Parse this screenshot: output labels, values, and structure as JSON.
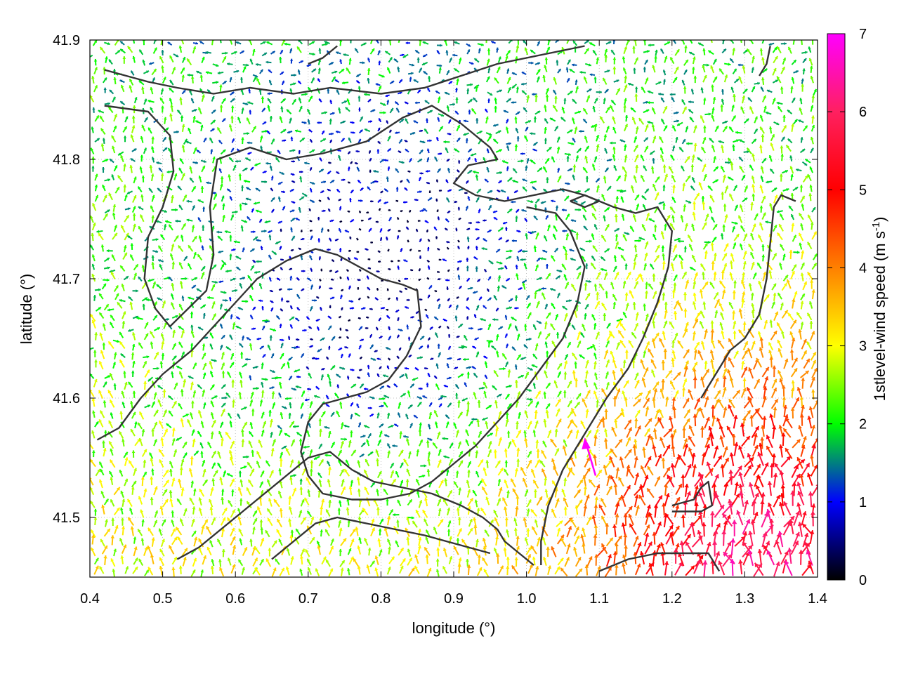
{
  "chart_data": {
    "type": "vector-field",
    "xlabel": "longitude (°)",
    "ylabel": "latitude (°)",
    "colorbar_label": "1stlevel-wind speed (m s",
    "colorbar_label_sup": "-1",
    "colorbar_label_close": ")",
    "xlim": [
      0.4,
      1.4
    ],
    "ylim": [
      41.45,
      41.9
    ],
    "xticks": [
      0.4,
      0.5,
      0.6,
      0.7,
      0.8,
      0.9,
      1.0,
      1.1,
      1.2,
      1.3,
      1.4
    ],
    "xtick_labels": [
      "0.4",
      "0.5",
      "0.6",
      "0.7",
      "0.8",
      "0.9",
      "1.0",
      "1.1",
      "1.2",
      "1.3",
      "1.4"
    ],
    "yticks": [
      41.5,
      41.6,
      41.7,
      41.8,
      41.9
    ],
    "ytick_labels": [
      "41.5",
      "41.6",
      "41.7",
      "41.8",
      "41.9"
    ],
    "crange": [
      0,
      7
    ],
    "cticks": [
      0,
      1,
      2,
      3,
      4,
      5,
      6,
      7
    ],
    "ctick_labels": [
      "0",
      "1",
      "2",
      "3",
      "4",
      "5",
      "6",
      "7"
    ],
    "colormap": [
      "#000000",
      "#0000ff",
      "#00ff00",
      "#ffff00",
      "#ff8000",
      "#ff0000",
      "#ff00ff"
    ],
    "contour_color": "#333333",
    "grid": "dotted",
    "wind_field_description": "dense arrows; weak winds (0-2 m/s, blue/green) over interior basin 0.6-1.0 lon, 41.55-41.85 lat; stronger southeasterly flow (3-6 m/s, yellow to red) toward southeast corner 1.0-1.4 lon, 41.45-41.65 lat; a single ~7 m/s vector near 1.08, 41.56",
    "contours": [
      [
        [
          0.42,
          41.875
        ],
        [
          0.48,
          41.865
        ],
        [
          0.52,
          41.86
        ],
        [
          0.57,
          41.855
        ],
        [
          0.62,
          41.86
        ],
        [
          0.68,
          41.855
        ],
        [
          0.73,
          41.86
        ],
        [
          0.8,
          41.855
        ],
        [
          0.86,
          41.86
        ],
        [
          0.91,
          41.87
        ],
        [
          0.96,
          41.88
        ],
        [
          1.0,
          41.885
        ],
        [
          1.04,
          41.89
        ],
        [
          1.08,
          41.895
        ]
      ],
      [
        [
          0.42,
          41.845
        ],
        [
          0.48,
          41.84
        ],
        [
          0.51,
          41.82
        ],
        [
          0.515,
          41.79
        ],
        [
          0.5,
          41.76
        ],
        [
          0.48,
          41.735
        ],
        [
          0.475,
          41.7
        ],
        [
          0.49,
          41.675
        ],
        [
          0.51,
          41.66
        ],
        [
          0.535,
          41.675
        ],
        [
          0.56,
          41.69
        ],
        [
          0.57,
          41.72
        ],
        [
          0.565,
          41.76
        ],
        [
          0.575,
          41.8
        ],
        [
          0.62,
          41.81
        ],
        [
          0.67,
          41.8
        ],
        [
          0.72,
          41.805
        ],
        [
          0.78,
          41.815
        ],
        [
          0.83,
          41.835
        ],
        [
          0.87,
          41.845
        ],
        [
          0.91,
          41.83
        ],
        [
          0.95,
          41.81
        ],
        [
          0.96,
          41.8
        ],
        [
          0.92,
          41.795
        ],
        [
          0.9,
          41.78
        ],
        [
          0.93,
          41.77
        ],
        [
          0.97,
          41.765
        ],
        [
          1.01,
          41.77
        ],
        [
          1.05,
          41.775
        ],
        [
          1.08,
          41.77
        ],
        [
          1.12,
          41.76
        ],
        [
          1.15,
          41.755
        ],
        [
          1.18,
          41.76
        ],
        [
          1.2,
          41.74
        ],
        [
          1.195,
          41.71
        ],
        [
          1.18,
          41.68
        ],
        [
          1.16,
          41.65
        ],
        [
          1.14,
          41.625
        ],
        [
          1.11,
          41.6
        ],
        [
          1.08,
          41.57
        ],
        [
          1.05,
          41.54
        ],
        [
          1.03,
          41.51
        ],
        [
          1.02,
          41.48
        ],
        [
          1.02,
          41.46
        ]
      ],
      [
        [
          0.41,
          41.565
        ],
        [
          0.44,
          41.575
        ],
        [
          0.47,
          41.6
        ],
        [
          0.5,
          41.62
        ],
        [
          0.54,
          41.64
        ],
        [
          0.57,
          41.66
        ],
        [
          0.6,
          41.68
        ],
        [
          0.63,
          41.7
        ],
        [
          0.67,
          41.715
        ],
        [
          0.71,
          41.725
        ],
        [
          0.74,
          41.72
        ],
        [
          0.77,
          41.71
        ],
        [
          0.8,
          41.7
        ],
        [
          0.83,
          41.695
        ],
        [
          0.85,
          41.69
        ],
        [
          0.855,
          41.66
        ],
        [
          0.835,
          41.635
        ],
        [
          0.81,
          41.615
        ],
        [
          0.78,
          41.605
        ],
        [
          0.75,
          41.6
        ],
        [
          0.72,
          41.595
        ],
        [
          0.7,
          41.58
        ],
        [
          0.69,
          41.555
        ],
        [
          0.7,
          41.535
        ],
        [
          0.72,
          41.52
        ],
        [
          0.76,
          41.515
        ],
        [
          0.8,
          41.515
        ],
        [
          0.84,
          41.52
        ],
        [
          0.87,
          41.53
        ],
        [
          0.9,
          41.545
        ],
        [
          0.93,
          41.56
        ],
        [
          0.96,
          41.58
        ],
        [
          0.99,
          41.6
        ],
        [
          1.02,
          41.625
        ],
        [
          1.05,
          41.65
        ],
        [
          1.07,
          41.68
        ],
        [
          1.08,
          41.71
        ],
        [
          1.06,
          41.74
        ],
        [
          1.04,
          41.755
        ],
        [
          1.0,
          41.76
        ]
      ],
      [
        [
          0.52,
          41.465
        ],
        [
          0.55,
          41.475
        ],
        [
          0.58,
          41.49
        ],
        [
          0.61,
          41.505
        ],
        [
          0.64,
          41.52
        ],
        [
          0.67,
          41.535
        ],
        [
          0.7,
          41.55
        ],
        [
          0.73,
          41.555
        ],
        [
          0.76,
          41.54
        ],
        [
          0.79,
          41.53
        ],
        [
          0.83,
          41.525
        ],
        [
          0.87,
          41.52
        ],
        [
          0.91,
          41.51
        ],
        [
          0.94,
          41.5
        ],
        [
          0.96,
          41.49
        ],
        [
          0.97,
          41.48
        ],
        [
          0.99,
          41.47
        ],
        [
          1.01,
          41.46
        ]
      ],
      [
        [
          0.65,
          41.465
        ],
        [
          0.68,
          41.48
        ],
        [
          0.71,
          41.495
        ],
        [
          0.74,
          41.5
        ],
        [
          0.78,
          41.495
        ],
        [
          0.82,
          41.49
        ],
        [
          0.86,
          41.485
        ],
        [
          0.89,
          41.48
        ],
        [
          0.92,
          41.475
        ],
        [
          0.95,
          41.47
        ]
      ],
      [
        [
          1.1,
          41.455
        ],
        [
          1.14,
          41.465
        ],
        [
          1.18,
          41.47
        ],
        [
          1.22,
          41.47
        ],
        [
          1.25,
          41.47
        ],
        [
          1.265,
          41.455
        ]
      ],
      [
        [
          1.2,
          41.51
        ],
        [
          1.23,
          41.515
        ],
        [
          1.24,
          41.525
        ],
        [
          1.25,
          41.53
        ],
        [
          1.255,
          41.51
        ],
        [
          1.24,
          41.505
        ],
        [
          1.22,
          41.505
        ],
        [
          1.2,
          41.505
        ]
      ],
      [
        [
          1.24,
          41.6
        ],
        [
          1.26,
          41.62
        ],
        [
          1.28,
          41.64
        ],
        [
          1.3,
          41.65
        ],
        [
          1.32,
          41.67
        ],
        [
          1.33,
          41.7
        ],
        [
          1.335,
          41.73
        ],
        [
          1.34,
          41.76
        ],
        [
          1.35,
          41.77
        ],
        [
          1.37,
          41.765
        ]
      ],
      [
        [
          1.32,
          41.87
        ],
        [
          1.33,
          41.88
        ],
        [
          1.335,
          41.895
        ]
      ],
      [
        [
          1.06,
          41.765
        ],
        [
          1.08,
          41.76
        ],
        [
          1.1,
          41.765
        ],
        [
          1.08,
          41.77
        ],
        [
          1.06,
          41.765
        ]
      ],
      [
        [
          0.7,
          41.88
        ],
        [
          0.72,
          41.885
        ],
        [
          0.74,
          41.895
        ]
      ]
    ]
  }
}
